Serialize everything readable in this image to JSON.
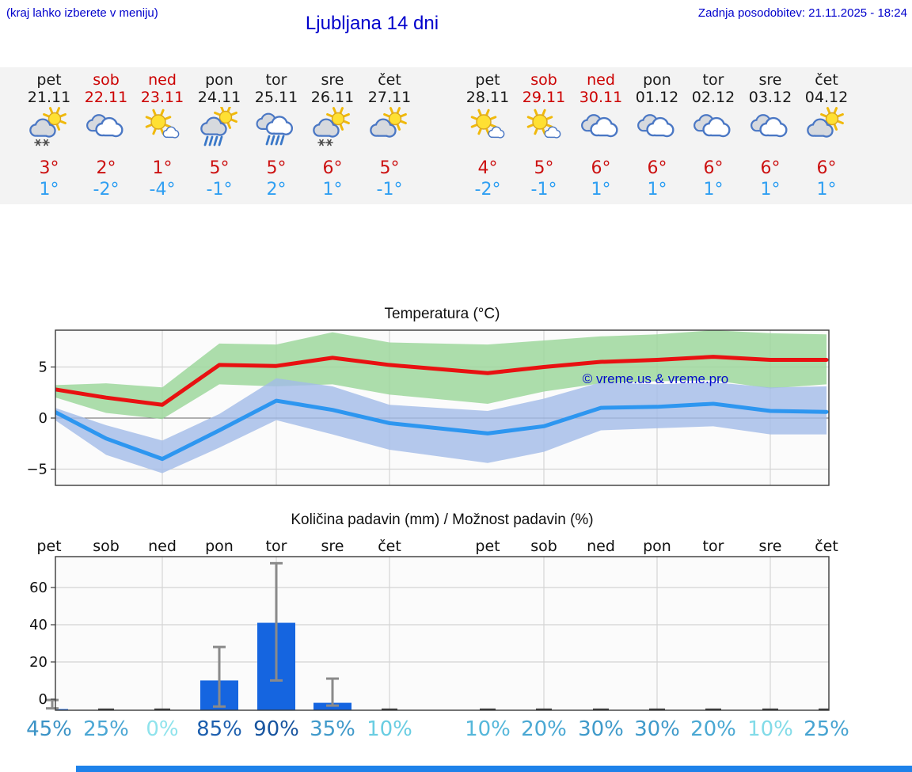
{
  "header": {
    "note": "(kraj lahko izberete v meniju)",
    "title": "Ljubljana 14 dni",
    "updated": "Zadnja posodobitev: 21.11.2025 - 18:24"
  },
  "watermark": "© vreme.us & vreme.pro",
  "days": [
    {
      "name": "pet",
      "date": "21.11",
      "weekend": false,
      "icon": "sun-cloud-snow",
      "high": "3°",
      "low": "1°"
    },
    {
      "name": "sob",
      "date": "22.11",
      "weekend": true,
      "icon": "cloudy",
      "high": "2°",
      "low": "-2°"
    },
    {
      "name": "ned",
      "date": "23.11",
      "weekend": true,
      "icon": "sun-small-cloud",
      "high": "1°",
      "low": "-4°"
    },
    {
      "name": "pon",
      "date": "24.11",
      "weekend": false,
      "icon": "sun-cloud-rain",
      "high": "5°",
      "low": "-1°"
    },
    {
      "name": "tor",
      "date": "25.11",
      "weekend": false,
      "icon": "cloud-rain",
      "high": "5°",
      "low": "2°"
    },
    {
      "name": "sre",
      "date": "26.11",
      "weekend": false,
      "icon": "sun-cloud-snow",
      "high": "6°",
      "low": "1°"
    },
    {
      "name": "čet",
      "date": "27.11",
      "weekend": false,
      "icon": "sun-cloud",
      "high": "5°",
      "low": "-1°"
    },
    {
      "name": "pet",
      "date": "28.11",
      "weekend": false,
      "icon": "sun-small-cloud",
      "high": "4°",
      "low": "-2°"
    },
    {
      "name": "sob",
      "date": "29.11",
      "weekend": true,
      "icon": "sun-small-cloud",
      "high": "5°",
      "low": "-1°"
    },
    {
      "name": "ned",
      "date": "30.11",
      "weekend": true,
      "icon": "cloudy",
      "high": "6°",
      "low": "1°"
    },
    {
      "name": "pon",
      "date": "01.12",
      "weekend": false,
      "icon": "cloudy",
      "high": "6°",
      "low": "1°"
    },
    {
      "name": "tor",
      "date": "02.12",
      "weekend": false,
      "icon": "cloudy",
      "high": "6°",
      "low": "1°"
    },
    {
      "name": "sre",
      "date": "03.12",
      "weekend": false,
      "icon": "cloudy",
      "high": "6°",
      "low": "1°"
    },
    {
      "name": "čet",
      "date": "04.12",
      "weekend": false,
      "icon": "sun-cloud",
      "high": "6°",
      "low": "1°"
    }
  ],
  "colors": {
    "accent_blue_text": "#0000cc",
    "high_temp": "#cc1111",
    "low_temp": "#2f9ff2",
    "weekend": "#cc0000",
    "temp_max_line": "#e81111",
    "temp_min_line": "#2d96f0",
    "temp_max_band": "#98d697",
    "temp_min_band": "#a3bce9",
    "precip_bar": "#1565e0",
    "error_bar": "#8a8a8a"
  },
  "chart_data": [
    {
      "type": "line",
      "title": "Temperatura (°C)",
      "x_labels": [
        "21.11",
        "22.11",
        "23.11",
        "24.11",
        "25.11",
        "26.11",
        "27.11",
        "28.11",
        "29.11",
        "30.11",
        "01.12",
        "02.12",
        "03.12",
        "04.12"
      ],
      "yticks": [
        -5,
        0,
        5
      ],
      "ylim": [
        -6.6,
        8.7
      ],
      "grid": "light gray, vertical line every 2 days, dark line at 0",
      "legend_position": "none",
      "watermark": "© vreme.us & vreme.pro",
      "series": [
        {
          "name": "max temperature",
          "color": "#e81111",
          "values": [
            2.9,
            2.0,
            1.3,
            5.2,
            5.1,
            5.9,
            5.2,
            4.4,
            5.0,
            5.5,
            5.7,
            6.0,
            5.7,
            5.7
          ]
        },
        {
          "name": "max band upper",
          "color": "#98d697",
          "values": [
            3.2,
            3.4,
            3.0,
            7.3,
            7.2,
            8.4,
            7.4,
            7.2,
            7.6,
            8.0,
            8.2,
            8.6,
            8.3,
            8.2
          ]
        },
        {
          "name": "max band lower",
          "color": "#98d697",
          "values": [
            2.2,
            0.5,
            -0.1,
            3.3,
            3.1,
            3.3,
            2.3,
            1.4,
            2.6,
            3.4,
            3.6,
            3.7,
            2.9,
            3.3
          ]
        },
        {
          "name": "min temperature",
          "color": "#2d96f0",
          "values": [
            0.9,
            -2.0,
            -4.0,
            -1.2,
            1.7,
            0.8,
            -0.5,
            -1.5,
            -0.8,
            1.0,
            1.1,
            1.4,
            0.7,
            0.6
          ]
        },
        {
          "name": "min band upper",
          "color": "#a3bce9",
          "values": [
            1.2,
            -0.7,
            -2.2,
            0.4,
            3.9,
            3.1,
            1.3,
            0.7,
            1.9,
            3.5,
            3.3,
            3.5,
            3.0,
            3.1
          ]
        },
        {
          "name": "min band lower",
          "color": "#a3bce9",
          "values": [
            0.2,
            -3.6,
            -5.4,
            -2.9,
            -0.2,
            -1.6,
            -3.1,
            -4.4,
            -3.3,
            -1.2,
            -1.0,
            -0.8,
            -1.6,
            -1.6
          ]
        }
      ]
    },
    {
      "type": "bar",
      "title": "Količina padavin (mm) / Možnost padavin (%)",
      "categories": [
        "pet",
        "sob",
        "ned",
        "pon",
        "tor",
        "sre",
        "čet",
        "pet",
        "sob",
        "ned",
        "pon",
        "tor",
        "sre",
        "čet"
      ],
      "values": [
        0.5,
        0,
        0,
        16,
        47,
        4,
        0,
        0,
        0,
        0,
        0,
        0,
        0,
        0
      ],
      "error_ranges": [
        [
          1,
          5.5
        ],
        null,
        null,
        [
          2,
          34
        ],
        [
          16,
          79
        ],
        [
          2.5,
          17
        ],
        null,
        null,
        null,
        null,
        null,
        null,
        null,
        null
      ],
      "yticks": [
        0,
        20,
        40,
        60
      ],
      "ylim": [
        -6,
        76
      ],
      "grid": "light gray horizontal at 20/40/60, vertical every 2 days",
      "probabilities": [
        {
          "label": "45%",
          "color": "#3b93c6"
        },
        {
          "label": "25%",
          "color": "#4ba7d4"
        },
        {
          "label": "0%",
          "color": "#8fe3ec"
        },
        {
          "label": "85%",
          "color": "#1d5fae"
        },
        {
          "label": "90%",
          "color": "#17549f"
        },
        {
          "label": "35%",
          "color": "#3f99ca"
        },
        {
          "label": "10%",
          "color": "#69cde2"
        },
        {
          "label": "10%",
          "color": "#55b7da"
        },
        {
          "label": "20%",
          "color": "#4aa8d3"
        },
        {
          "label": "30%",
          "color": "#3f9aca"
        },
        {
          "label": "30%",
          "color": "#3f9aca"
        },
        {
          "label": "20%",
          "color": "#4aa8d3"
        },
        {
          "label": "10%",
          "color": "#82dbe8"
        },
        {
          "label": "25%",
          "color": "#46a3d1"
        }
      ]
    }
  ]
}
